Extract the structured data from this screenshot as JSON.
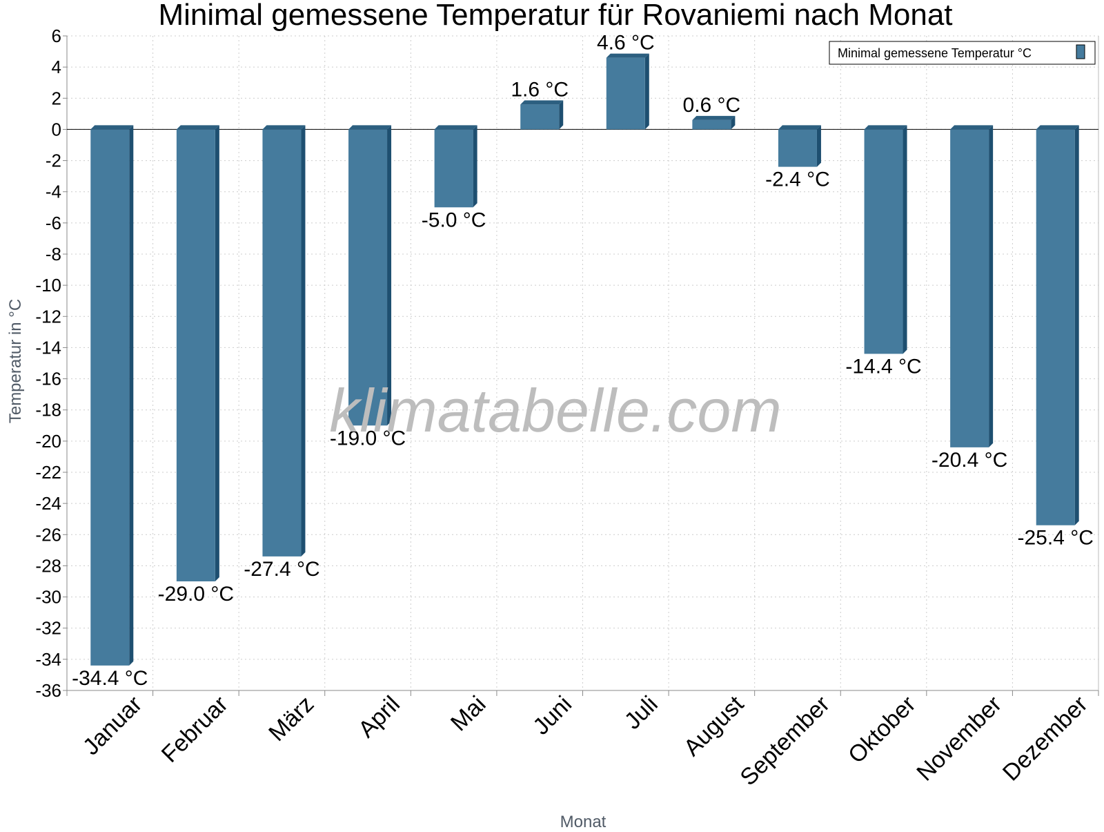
{
  "chart_data": {
    "type": "bar",
    "title": "Minimal gemessene Temperatur für Rovaniemi nach Monat",
    "xlabel": "Monat",
    "ylabel": "Temperatur in °C",
    "watermark": "klimatabelle.com",
    "categories": [
      "Januar",
      "Februar",
      "März",
      "April",
      "Mai",
      "Juni",
      "Juli",
      "August",
      "September",
      "Oktober",
      "November",
      "Dezember"
    ],
    "series": [
      {
        "name": "Minimal gemessene Temperatur °C",
        "values": [
          -34.4,
          -29.0,
          -27.4,
          -19.0,
          -5.0,
          1.6,
          4.6,
          0.6,
          -2.4,
          -14.4,
          -20.4,
          -25.4
        ],
        "labels": [
          "-34.4 °C",
          "-29.0 °C",
          "-27.4 °C",
          "-19.0 °C",
          "-5.0 °C",
          "1.6 °C",
          "4.6 °C",
          "0.6 °C",
          "-2.4 °C",
          "-14.4 °C",
          "-20.4 °C",
          "-25.4 °C"
        ]
      }
    ],
    "ylim": [
      -36,
      6
    ],
    "yticks": [
      6,
      4,
      2,
      0,
      -2,
      -4,
      -6,
      -8,
      -10,
      -12,
      -14,
      -16,
      -18,
      -20,
      -22,
      -24,
      -26,
      -28,
      -30,
      -32,
      -34,
      -36
    ],
    "grid": true,
    "legend_position": "top-right",
    "colors": {
      "bar": "#457b9d",
      "bar_side": "#1e4f70",
      "bar_top": "#2c5f80",
      "grid": "#cccccc",
      "watermark": "#bdbdbd"
    }
  }
}
